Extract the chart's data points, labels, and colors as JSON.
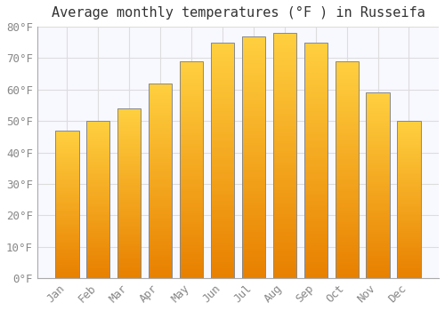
{
  "title": "Average monthly temperatures (°F ) in Russeifa",
  "months": [
    "Jan",
    "Feb",
    "Mar",
    "Apr",
    "May",
    "Jun",
    "Jul",
    "Aug",
    "Sep",
    "Oct",
    "Nov",
    "Dec"
  ],
  "values": [
    47,
    50,
    54,
    62,
    69,
    75,
    77,
    78,
    75,
    69,
    59,
    50
  ],
  "bar_color_bright": "#FFD040",
  "bar_color_dark": "#E88000",
  "bar_edge_color": "#888888",
  "background_color": "#FFFFFF",
  "plot_bg_color": "#F8F8FF",
  "grid_color": "#DDDDDD",
  "text_color": "#888888",
  "title_color": "#333333",
  "ylim": [
    0,
    80
  ],
  "yticks": [
    0,
    10,
    20,
    30,
    40,
    50,
    60,
    70,
    80
  ],
  "ytick_labels": [
    "0°F",
    "10°F",
    "20°F",
    "30°F",
    "40°F",
    "50°F",
    "60°F",
    "70°F",
    "80°F"
  ],
  "title_fontsize": 11,
  "tick_fontsize": 9,
  "font_family": "monospace"
}
